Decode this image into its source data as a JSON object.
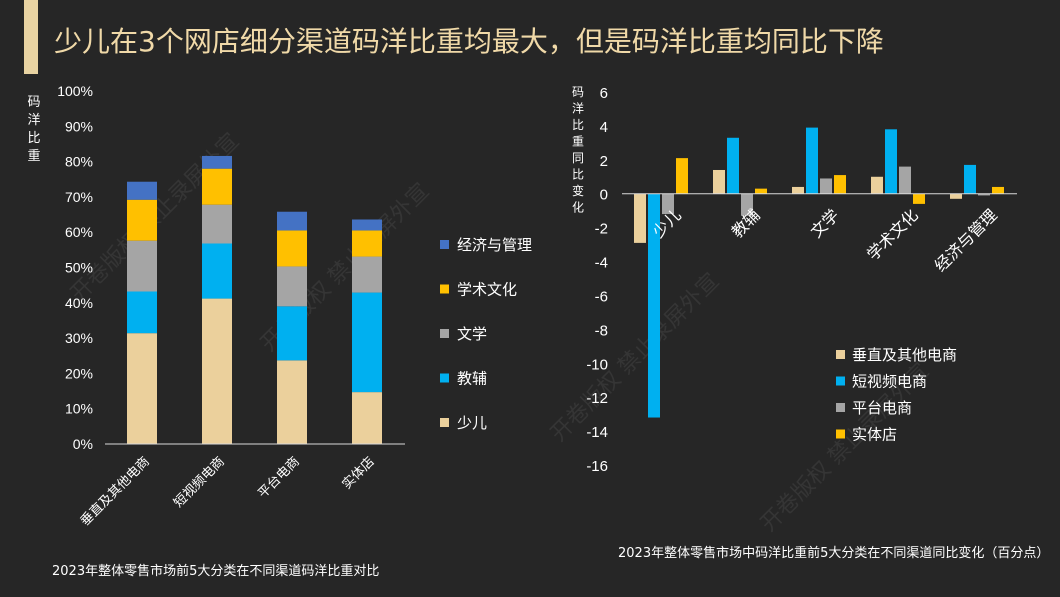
{
  "title": "少儿在3个网店细分渠道码洋比重均最大，但是码洋比重均同比下降",
  "watermark": "开卷版权 禁止录屏外宣",
  "chart_data": [
    {
      "type": "bar",
      "stacked": true,
      "ylabel": "码洋比重",
      "ylim": [
        0,
        100
      ],
      "yticks": [
        "0%",
        "10%",
        "20%",
        "30%",
        "40%",
        "50%",
        "60%",
        "70%",
        "80%",
        "90%",
        "100%"
      ],
      "categories": [
        "垂直及其他电商",
        "短视频电商",
        "平台电商",
        "实体店"
      ],
      "series": [
        {
          "name": "少儿",
          "color": "#ebd09c",
          "values": [
            31.4,
            41.2,
            23.7,
            14.7
          ]
        },
        {
          "name": "教辅",
          "color": "#00b0f0",
          "values": [
            11.8,
            15.6,
            15.3,
            28.2
          ]
        },
        {
          "name": "文学",
          "color": "#a5a5a5",
          "values": [
            14.4,
            11.0,
            11.3,
            10.2
          ]
        },
        {
          "name": "学术文化",
          "color": "#ffc000",
          "values": [
            11.6,
            10.2,
            10.2,
            7.4
          ]
        },
        {
          "name": "经济与管理",
          "color": "#4472c4",
          "values": [
            5.1,
            3.6,
            5.3,
            3.1
          ]
        }
      ],
      "legend_position": "right",
      "caption": "2023年整体零售市场前5大分类在不同渠道码洋比重对比"
    },
    {
      "type": "bar",
      "ylabel": "码洋比重同比变化",
      "ylim": [
        -16,
        6
      ],
      "yticks": [
        "6",
        "4",
        "2",
        "0",
        "-2",
        "-4",
        "-6",
        "-8",
        "-10",
        "-12",
        "-14",
        "-16"
      ],
      "categories": [
        "少儿",
        "教辅",
        "文学",
        "学术文化",
        "经济与管理"
      ],
      "series": [
        {
          "name": "垂直及其他电商",
          "color": "#ebd09c",
          "values": [
            -2.9,
            1.4,
            0.4,
            1.0,
            -0.3
          ]
        },
        {
          "name": "短视频电商",
          "color": "#00b0f0",
          "values": [
            -13.2,
            3.3,
            3.9,
            3.8,
            1.7
          ]
        },
        {
          "name": "平台电商",
          "color": "#a5a5a5",
          "values": [
            -1.2,
            -1.3,
            0.9,
            1.6,
            -0.1
          ]
        },
        {
          "name": "实体店",
          "color": "#ffc000",
          "values": [
            2.1,
            0.3,
            1.1,
            -0.6,
            0.4
          ]
        }
      ],
      "legend_position": "bottom-right",
      "caption": "2023年整体零售市场中码洋比重前5大分类在不同渠道同比变化（百分点）"
    }
  ]
}
